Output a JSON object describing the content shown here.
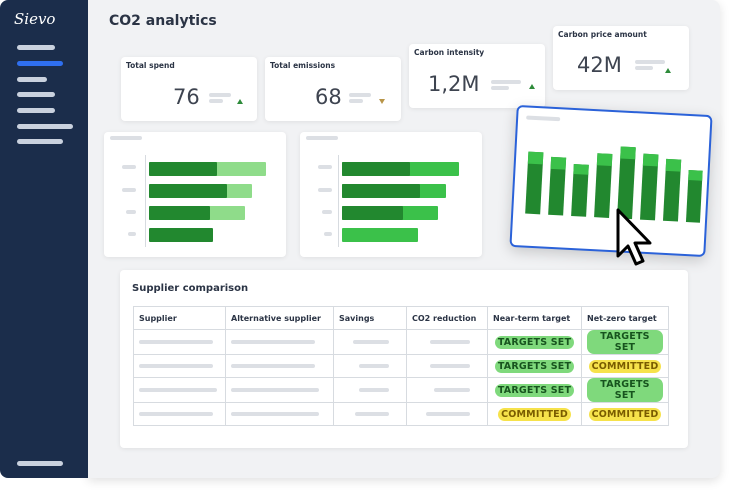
{
  "sidebar": {
    "logo": "Sievo"
  },
  "header": {
    "title": "CO2 analytics"
  },
  "kpis": [
    {
      "label": "Total spend",
      "value": 76
    },
    {
      "label": "Total emissions",
      "value": 68
    },
    {
      "label": "Carbon intensity",
      "value": "1,2M"
    },
    {
      "label": "Carbon price amount",
      "value": "42M"
    }
  ],
  "table": {
    "title": "Supplier comparison",
    "headers": [
      "Supplier",
      "Alternative supplier",
      "Savings",
      "CO2 reduction",
      "Near-term target",
      "Net-zero target"
    ],
    "rows": [
      [
        "TARGETS SET",
        "TARGETS SET"
      ],
      [
        "TARGETS SET",
        "COMMITTED"
      ],
      [
        "TARGETS SET",
        "TARGETS SET"
      ],
      [
        "COMMITTED",
        "COMMITTED"
      ]
    ]
  }
}
